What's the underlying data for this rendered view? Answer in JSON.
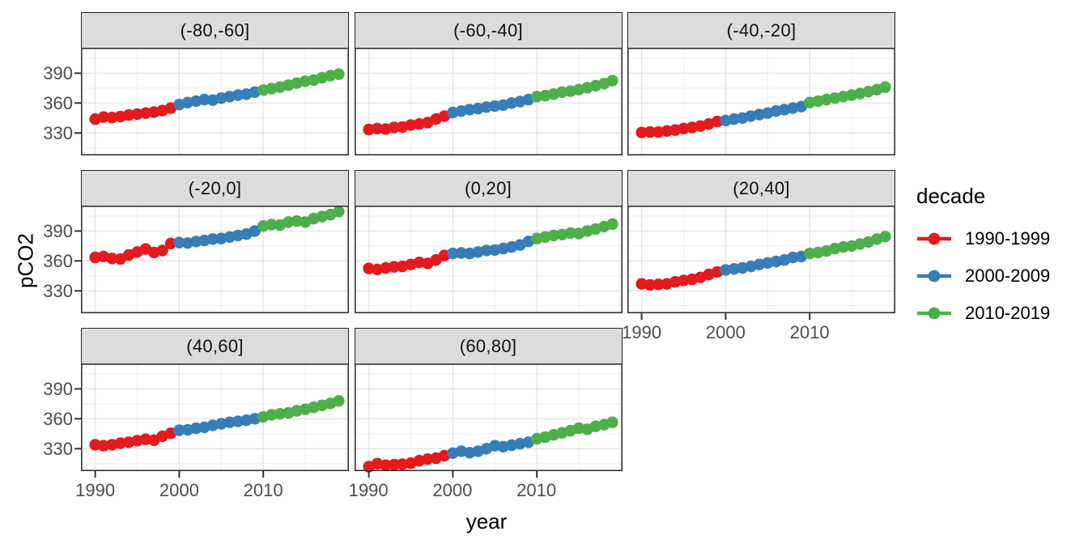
{
  "page": {
    "background": "#ffffff"
  },
  "chart_data": {
    "type": "scatter",
    "style": "faceted annual time series, points connected by lines, ggplot2 facet_wrap by latitude band, theme_bw",
    "title": "",
    "xlabel": "year",
    "ylabel": "pCO2",
    "grid": "on",
    "x_tick_values": [
      1990,
      2000,
      2010
    ],
    "y_tick_values": [
      390,
      360,
      330
    ],
    "x_minor_gridlines": [
      1995,
      2005,
      2015
    ],
    "y_minor_gridlines": [
      315,
      345,
      375,
      405
    ],
    "xlim": [
      1988.3,
      2020.2
    ],
    "ylim": [
      307.5,
      415.5
    ],
    "years": [
      1990,
      1991,
      1992,
      1993,
      1994,
      1995,
      1996,
      1997,
      1998,
      1999,
      2000,
      2001,
      2002,
      2003,
      2004,
      2005,
      2006,
      2007,
      2008,
      2009,
      2010,
      2011,
      2012,
      2013,
      2014,
      2015,
      2016,
      2017,
      2018,
      2019
    ],
    "legend": {
      "title": "decade",
      "position": "right",
      "entries": [
        {
          "label": "1990-1999",
          "color": "#E41A1C"
        },
        {
          "label": "2000-2009",
          "color": "#377EB8"
        },
        {
          "label": "2010-2019",
          "color": "#4DAF4A"
        }
      ]
    },
    "groups": [
      {
        "name": "1990-1999",
        "year_range": [
          1990,
          1999
        ],
        "color": "#E41A1C"
      },
      {
        "name": "2000-2009",
        "year_range": [
          2000,
          2009
        ],
        "color": "#377EB8"
      },
      {
        "name": "2010-2019",
        "year_range": [
          2010,
          2019
        ],
        "color": "#4DAF4A"
      }
    ],
    "facets": [
      {
        "label": "(-80,-60]",
        "values": [
          344,
          346,
          345.5,
          346.5,
          348,
          349,
          350,
          351,
          352.5,
          355,
          358.5,
          360.5,
          362,
          363.5,
          363,
          365,
          366.5,
          368,
          369,
          371,
          373,
          374.5,
          376,
          378,
          380,
          382,
          383,
          385.5,
          387.5,
          389
        ]
      },
      {
        "label": "(-60,-40]",
        "values": [
          333.5,
          334.5,
          334,
          335.5,
          336,
          338,
          339,
          340.5,
          344,
          347,
          350.5,
          352,
          353.5,
          354.5,
          356,
          357,
          358,
          360,
          361.5,
          363.5,
          366.5,
          367.5,
          369,
          371,
          372,
          373.5,
          375.5,
          377.5,
          379.5,
          382.5
        ]
      },
      {
        "label": "(-40,-20]",
        "values": [
          330.5,
          331,
          331,
          332,
          333,
          334.5,
          335.5,
          337,
          339,
          341.5,
          342.5,
          344,
          345,
          347,
          348.5,
          350,
          352,
          353.5,
          355,
          356.5,
          360.5,
          362,
          363.5,
          365,
          366.5,
          368,
          369.5,
          371.5,
          373.5,
          376
        ]
      },
      {
        "label": "(-20,0]",
        "values": [
          363.5,
          364.5,
          362.5,
          362,
          366,
          369,
          372,
          368.5,
          370.5,
          377.5,
          378.5,
          378,
          379.5,
          380.5,
          382,
          382.5,
          384,
          385.5,
          387,
          390,
          395,
          396.5,
          396,
          399,
          400,
          399,
          402.5,
          404.5,
          406.5,
          409.5
        ]
      },
      {
        "label": "(0,20]",
        "values": [
          352.5,
          351.5,
          353,
          354,
          354.5,
          356.5,
          358.5,
          357.5,
          361,
          365.5,
          367.5,
          368,
          367.5,
          369,
          370.5,
          371,
          372.5,
          374,
          376,
          379.5,
          382.5,
          384,
          385.5,
          386.5,
          388,
          387.5,
          390,
          392,
          394.5,
          397
        ]
      },
      {
        "label": "(20,40]",
        "values": [
          337,
          336,
          336.5,
          337,
          339,
          340.5,
          341.5,
          343.5,
          346.5,
          349,
          351,
          352,
          353,
          354.5,
          356.5,
          358,
          359.5,
          361,
          363.5,
          364.5,
          367.5,
          368.5,
          370,
          372.5,
          374,
          375,
          377,
          379,
          382,
          384.5
        ]
      },
      {
        "label": "(40,60]",
        "values": [
          334,
          333,
          334,
          335.5,
          336.5,
          338,
          339.5,
          338.5,
          342.5,
          345.5,
          348.5,
          349,
          350.5,
          351.5,
          353.5,
          355,
          356.5,
          357.5,
          358.5,
          360,
          362,
          364,
          365,
          366,
          368,
          369.5,
          371.5,
          373.5,
          375.5,
          378
        ]
      },
      {
        "label": "(60,80]",
        "values": [
          312,
          315,
          313.5,
          314,
          314.5,
          315.5,
          318,
          319.5,
          320.5,
          323,
          325.5,
          327.5,
          326,
          327.5,
          330,
          333,
          332,
          333.5,
          335,
          336.5,
          340,
          341.5,
          344,
          346,
          348,
          350.5,
          349.5,
          352.5,
          354,
          356.5
        ]
      }
    ]
  },
  "theme": {
    "strip_fill": "#dcdcdc",
    "strip_border": "#222222",
    "panel_border": "#333333",
    "grid_major": "#e5e5e5",
    "grid_minor": "#f2f2f2",
    "tick_mark": "#333333",
    "tick_text": "#4d4d4d",
    "title_text": "#000000"
  }
}
